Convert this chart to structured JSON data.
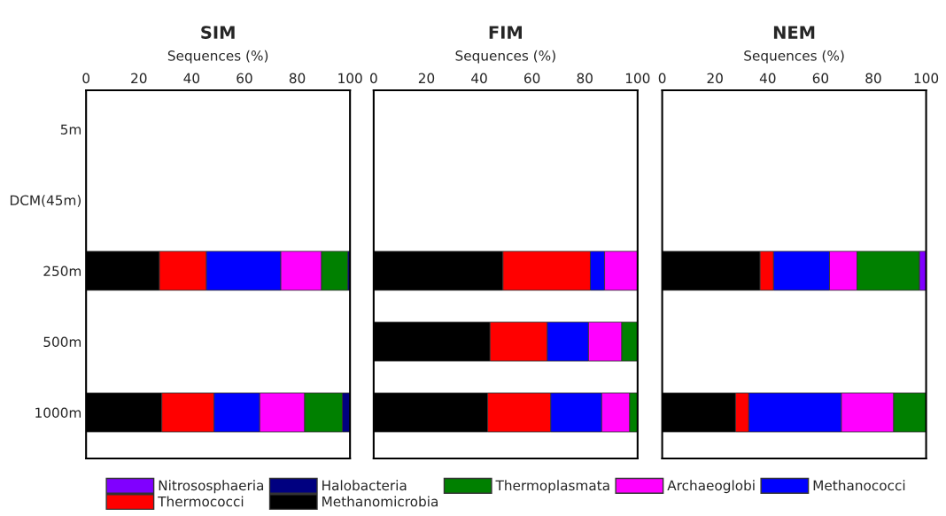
{
  "chart_data": [
    {
      "type": "bar",
      "orientation": "horizontal",
      "stacked": true,
      "title": "SIM",
      "xlabel": "Sequences (%)",
      "xlim": [
        0,
        100
      ],
      "xticks": [
        0,
        20,
        40,
        60,
        80,
        100
      ],
      "legend": "bottom",
      "categories": [
        "5m",
        "DCM(45m)",
        "250m",
        "500m",
        "1000m"
      ],
      "series": [
        {
          "name": "Methanomicrobia",
          "color": "#000000",
          "values": [
            null,
            null,
            27.8,
            null,
            28.7
          ]
        },
        {
          "name": "Thermococci",
          "color": "#ff0000",
          "values": [
            null,
            null,
            17.8,
            null,
            19.8
          ]
        },
        {
          "name": "Methanococci",
          "color": "#0000ff",
          "values": [
            null,
            null,
            28.2,
            null,
            17.3
          ]
        },
        {
          "name": "Archaeoglobi",
          "color": "#ff00ff",
          "values": [
            null,
            null,
            15.4,
            null,
            17.0
          ]
        },
        {
          "name": "Thermoplasmata",
          "color": "#008000",
          "values": [
            null,
            null,
            10.0,
            null,
            14.3
          ]
        },
        {
          "name": "Halobacteria",
          "color": "#000080",
          "values": [
            null,
            null,
            0.8,
            null,
            2.9
          ]
        },
        {
          "name": "Nitrososphaeria",
          "color": "#8000ff",
          "values": [
            null,
            null,
            null,
            null,
            null
          ]
        }
      ]
    },
    {
      "type": "bar",
      "orientation": "horizontal",
      "stacked": true,
      "title": "FIM",
      "xlabel": "Sequences (%)",
      "xlim": [
        0,
        100
      ],
      "xticks": [
        0,
        20,
        40,
        60,
        80,
        100
      ],
      "categories": [
        null,
        null,
        null,
        null,
        null
      ],
      "series": [
        {
          "color": "#000000",
          "values": [
            null,
            null,
            49.0,
            44.1,
            43.2
          ]
        },
        {
          "color": "#ff0000",
          "values": [
            null,
            null,
            33.1,
            21.7,
            23.9
          ]
        },
        {
          "color": "#0000ff",
          "values": [
            null,
            null,
            5.4,
            15.6,
            19.3
          ]
        },
        {
          "color": "#ff00ff",
          "values": [
            null,
            null,
            12.5,
            12.6,
            10.6
          ]
        },
        {
          "color": "#008000",
          "values": [
            null,
            null,
            null,
            6.0,
            3.0
          ]
        }
      ]
    },
    {
      "type": "bar",
      "orientation": "horizontal",
      "stacked": true,
      "title": "NEM",
      "xlabel": "Sequences (%)",
      "xlim": [
        0,
        100
      ],
      "xticks": [
        0,
        20,
        40,
        60,
        80,
        100
      ],
      "categories": [
        null,
        null,
        null,
        null,
        null
      ],
      "series": [
        {
          "color": "#000000",
          "values": [
            null,
            null,
            37.1,
            null,
            27.8
          ]
        },
        {
          "color": "#ff0000",
          "values": [
            null,
            null,
            5.1,
            null,
            5.0
          ]
        },
        {
          "color": "#0000ff",
          "values": [
            null,
            null,
            21.2,
            null,
            35.1
          ]
        },
        {
          "color": "#ff00ff",
          "values": [
            null,
            null,
            10.4,
            null,
            19.8
          ]
        },
        {
          "color": "#008000",
          "values": [
            null,
            null,
            23.7,
            null,
            12.3
          ]
        },
        {
          "color": "#8000ff",
          "values": [
            null,
            null,
            2.5,
            null,
            null
          ]
        }
      ]
    }
  ]
}
